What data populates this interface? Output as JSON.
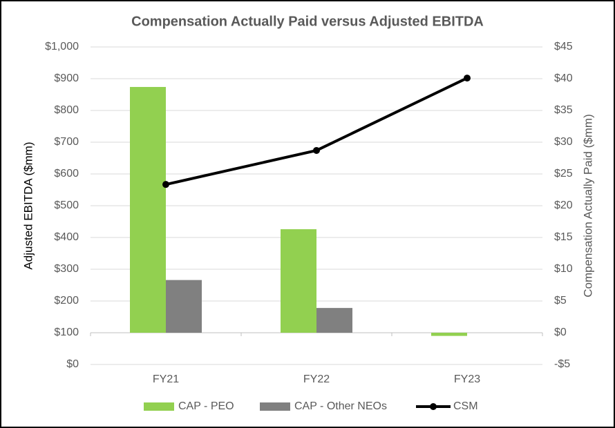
{
  "chart_data": {
    "type": "bar-line",
    "title": "Compensation Actually Paid versus Adjusted EBITDA",
    "ylabel": "Adjusted EBITDA ($mm)",
    "y2label": "Compensation Actually Paid ($mm)",
    "categories": [
      "FY21",
      "FY22",
      "FY23"
    ],
    "series": [
      {
        "name": "CAP - PEO",
        "type": "bar",
        "axis": "y2",
        "color": "#92d050",
        "values": [
          38.7,
          16.3,
          -0.5
        ]
      },
      {
        "name": "CAP - Other NEOs",
        "type": "bar",
        "axis": "y2",
        "color": "#808080",
        "values": [
          8.3,
          3.9,
          null
        ]
      },
      {
        "name": "CSM",
        "type": "line",
        "axis": "y",
        "color": "#000000",
        "values": [
          567,
          674,
          902
        ]
      }
    ],
    "ylim": [
      0,
      1000
    ],
    "yticks": [
      {
        "value": 0,
        "label": "$0"
      },
      {
        "value": 100,
        "label": "$100"
      },
      {
        "value": 200,
        "label": "$200"
      },
      {
        "value": 300,
        "label": "$300"
      },
      {
        "value": 400,
        "label": "$400"
      },
      {
        "value": 500,
        "label": "$500"
      },
      {
        "value": 600,
        "label": "$600"
      },
      {
        "value": 700,
        "label": "$700"
      },
      {
        "value": 800,
        "label": "$800"
      },
      {
        "value": 900,
        "label": "$900"
      },
      {
        "value": 1000,
        "label": "$1,000"
      }
    ],
    "y2lim": [
      -5,
      45
    ],
    "y2ticks": [
      {
        "value": -5,
        "label": "-$5"
      },
      {
        "value": 0,
        "label": "$0"
      },
      {
        "value": 5,
        "label": "$5"
      },
      {
        "value": 10,
        "label": "$10"
      },
      {
        "value": 15,
        "label": "$15"
      },
      {
        "value": 20,
        "label": "$20"
      },
      {
        "value": 25,
        "label": "$25"
      },
      {
        "value": 30,
        "label": "$30"
      },
      {
        "value": 35,
        "label": "$35"
      },
      {
        "value": 40,
        "label": "$40"
      },
      {
        "value": 45,
        "label": "$45"
      }
    ],
    "grid": true,
    "legend": "bottom"
  }
}
